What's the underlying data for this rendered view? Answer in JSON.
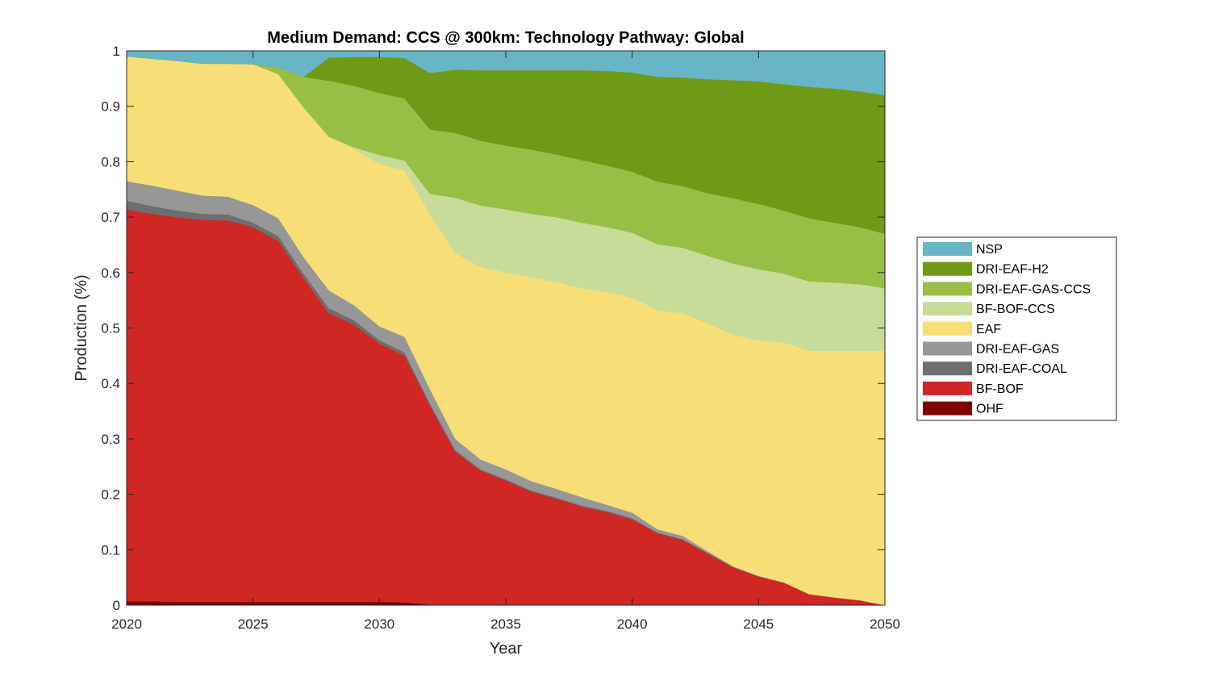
{
  "chart_data": {
    "type": "area",
    "stacked": true,
    "title": "Medium Demand: CCS @ 300km: Technology Pathway: Global",
    "xlabel": "Year",
    "ylabel": "Production (%)",
    "xlim": [
      2020,
      2050
    ],
    "ylim": [
      0,
      1
    ],
    "xticks": [
      2020,
      2025,
      2030,
      2035,
      2040,
      2045,
      2050
    ],
    "xtick_labels": [
      "2020",
      "2025",
      "2030",
      "2035",
      "2040",
      "2045",
      "2050"
    ],
    "yticks": [
      0,
      0.1,
      0.2,
      0.3,
      0.4,
      0.5,
      0.6,
      0.7,
      0.8,
      0.9,
      1
    ],
    "ytick_labels": [
      "0",
      "0.1",
      "0.2",
      "0.3",
      "0.4",
      "0.5",
      "0.6",
      "0.7",
      "0.8",
      "0.9",
      "1"
    ],
    "grid": false,
    "legend_position": "right",
    "x": [
      2020,
      2021,
      2022,
      2023,
      2024,
      2025,
      2026,
      2027,
      2028,
      2029,
      2030,
      2031,
      2032,
      2033,
      2034,
      2035,
      2036,
      2037,
      2038,
      2039,
      2040,
      2041,
      2042,
      2043,
      2044,
      2045,
      2046,
      2047,
      2048,
      2049,
      2050
    ],
    "series": [
      {
        "name": "OHF",
        "color": "#7f0000",
        "values": [
          0.007,
          0.007,
          0.006,
          0.006,
          0.006,
          0.006,
          0.006,
          0.006,
          0.006,
          0.006,
          0.006,
          0.005,
          0.001,
          0,
          0,
          0,
          0,
          0,
          0,
          0,
          0,
          0,
          0,
          0,
          0,
          0,
          0,
          0,
          0,
          0,
          0
        ]
      },
      {
        "name": "BF-BOF",
        "color": "#d02725",
        "values": [
          0.707,
          0.699,
          0.694,
          0.689,
          0.688,
          0.676,
          0.651,
          0.584,
          0.521,
          0.5,
          0.466,
          0.445,
          0.359,
          0.277,
          0.243,
          0.225,
          0.205,
          0.192,
          0.178,
          0.168,
          0.155,
          0.13,
          0.118,
          0.093,
          0.068,
          0.052,
          0.041,
          0.02,
          0.014,
          0.009,
          0.0
        ]
      },
      {
        "name": "DRI-EAF-COAL",
        "color": "#6e6e6e",
        "values": [
          0.016,
          0.014,
          0.012,
          0.011,
          0.011,
          0.008,
          0.009,
          0.008,
          0.009,
          0.008,
          0.006,
          0.006,
          0.004,
          0.003,
          0.002,
          0.002,
          0.002,
          0.002,
          0.002,
          0.002,
          0.002,
          0.001,
          0.001,
          0.001,
          0.001,
          0,
          0,
          0,
          0,
          0,
          0
        ]
      },
      {
        "name": "DRI-EAF-GAS",
        "color": "#979797",
        "values": [
          0.035,
          0.037,
          0.036,
          0.033,
          0.032,
          0.032,
          0.032,
          0.03,
          0.032,
          0.027,
          0.025,
          0.028,
          0.026,
          0.02,
          0.018,
          0.018,
          0.017,
          0.016,
          0.015,
          0.011,
          0.01,
          0.006,
          0.006,
          0.003,
          0.001,
          0.001,
          0,
          0,
          0,
          0,
          0
        ]
      },
      {
        "name": "EAF",
        "color": "#f7de77",
        "values": [
          0.225,
          0.229,
          0.234,
          0.238,
          0.24,
          0.254,
          0.26,
          0.27,
          0.277,
          0.282,
          0.293,
          0.3,
          0.315,
          0.335,
          0.347,
          0.355,
          0.368,
          0.373,
          0.377,
          0.384,
          0.388,
          0.395,
          0.402,
          0.411,
          0.418,
          0.425,
          0.433,
          0.439,
          0.445,
          0.45,
          0.459
        ]
      },
      {
        "name": "BF-BOF-CCS",
        "color": "#c7dc98",
        "values": [
          0,
          0,
          0,
          0,
          0,
          0,
          0,
          0,
          0,
          0.003,
          0.016,
          0.018,
          0.037,
          0.1,
          0.111,
          0.114,
          0.114,
          0.117,
          0.118,
          0.117,
          0.117,
          0.119,
          0.118,
          0.122,
          0.128,
          0.128,
          0.124,
          0.125,
          0.123,
          0.12,
          0.113
        ]
      },
      {
        "name": "DRI-EAF-GAS-CCS",
        "color": "#97bf46",
        "values": [
          0,
          0,
          0,
          0,
          0,
          0,
          0.012,
          0.055,
          0.101,
          0.111,
          0.112,
          0.112,
          0.116,
          0.117,
          0.117,
          0.115,
          0.116,
          0.113,
          0.113,
          0.111,
          0.11,
          0.113,
          0.111,
          0.113,
          0.118,
          0.118,
          0.114,
          0.114,
          0.108,
          0.103,
          0.098
        ]
      },
      {
        "name": "DRI-EAF-H2",
        "color": "#6e9a17",
        "values": [
          0,
          0,
          0,
          0,
          0,
          0,
          0,
          0,
          0.042,
          0.052,
          0.065,
          0.073,
          0.102,
          0.114,
          0.127,
          0.136,
          0.143,
          0.152,
          0.162,
          0.171,
          0.179,
          0.189,
          0.196,
          0.206,
          0.213,
          0.221,
          0.228,
          0.237,
          0.242,
          0.245,
          0.25
        ]
      },
      {
        "name": "NSP",
        "color": "#67b5c6",
        "values": [
          0.01,
          0.014,
          0.018,
          0.023,
          0.023,
          0.024,
          0.03,
          0.047,
          0.012,
          0.011,
          0.011,
          0.013,
          0.04,
          0.034,
          0.035,
          0.035,
          0.035,
          0.035,
          0.035,
          0.036,
          0.039,
          0.047,
          0.048,
          0.051,
          0.053,
          0.055,
          0.06,
          0.065,
          0.068,
          0.073,
          0.08
        ]
      }
    ],
    "legend_order": [
      "NSP",
      "DRI-EAF-H2",
      "DRI-EAF-GAS-CCS",
      "BF-BOF-CCS",
      "EAF",
      "DRI-EAF-GAS",
      "DRI-EAF-COAL",
      "BF-BOF",
      "OHF"
    ]
  }
}
